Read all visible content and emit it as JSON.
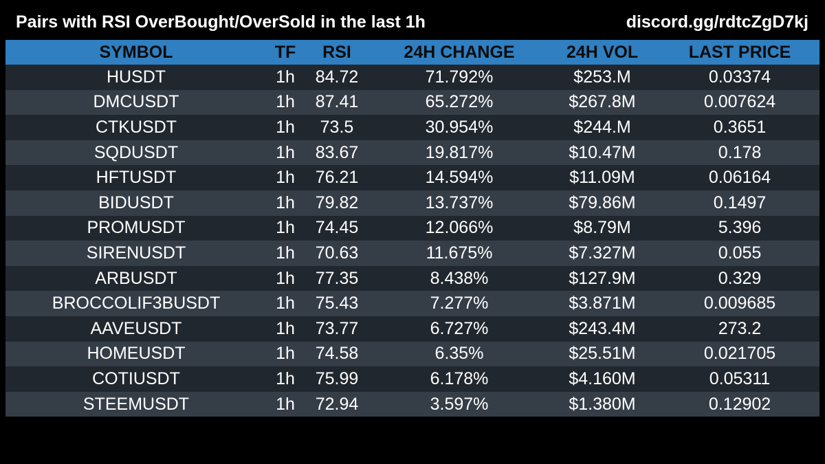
{
  "header": {
    "title": "Pairs with RSI OverBought/OverSold in the last 1h",
    "invite": "discord.gg/rdtcZgD7kj"
  },
  "columns": {
    "symbol": "SYMBOL",
    "tf": "TF",
    "rsi": "RSI",
    "change": "24H CHANGE",
    "vol": "24H VOL",
    "price": "LAST PRICE"
  },
  "rows": [
    {
      "symbol": "HUSDT",
      "tf": "1h",
      "rsi": "84.72",
      "change": "71.792%",
      "vol": "$253.M",
      "price": "0.03374"
    },
    {
      "symbol": "DMCUSDT",
      "tf": "1h",
      "rsi": "87.41",
      "change": "65.272%",
      "vol": "$267.8M",
      "price": "0.007624"
    },
    {
      "symbol": "CTKUSDT",
      "tf": "1h",
      "rsi": "73.5",
      "change": "30.954%",
      "vol": "$244.M",
      "price": "0.3651"
    },
    {
      "symbol": "SQDUSDT",
      "tf": "1h",
      "rsi": "83.67",
      "change": "19.817%",
      "vol": "$10.47M",
      "price": "0.178"
    },
    {
      "symbol": "HFTUSDT",
      "tf": "1h",
      "rsi": "76.21",
      "change": "14.594%",
      "vol": "$11.09M",
      "price": "0.06164"
    },
    {
      "symbol": "BIDUSDT",
      "tf": "1h",
      "rsi": "79.82",
      "change": "13.737%",
      "vol": "$79.86M",
      "price": "0.1497"
    },
    {
      "symbol": "PROMUSDT",
      "tf": "1h",
      "rsi": "74.45",
      "change": "12.066%",
      "vol": "$8.79M",
      "price": "5.396"
    },
    {
      "symbol": "SIRENUSDT",
      "tf": "1h",
      "rsi": "70.63",
      "change": "11.675%",
      "vol": "$7.327M",
      "price": "0.055"
    },
    {
      "symbol": "ARBUSDT",
      "tf": "1h",
      "rsi": "77.35",
      "change": "8.438%",
      "vol": "$127.9M",
      "price": "0.329"
    },
    {
      "symbol": "BROCCOLIF3BUSDT",
      "tf": "1h",
      "rsi": "75.43",
      "change": "7.277%",
      "vol": "$3.871M",
      "price": "0.009685"
    },
    {
      "symbol": "AAVEUSDT",
      "tf": "1h",
      "rsi": "73.77",
      "change": "6.727%",
      "vol": "$243.4M",
      "price": "273.2"
    },
    {
      "symbol": "HOMEUSDT",
      "tf": "1h",
      "rsi": "74.58",
      "change": "6.35%",
      "vol": "$25.51M",
      "price": "0.021705"
    },
    {
      "symbol": "COTIUSDT",
      "tf": "1h",
      "rsi": "75.99",
      "change": "6.178%",
      "vol": "$4.160M",
      "price": "0.05311"
    },
    {
      "symbol": "STEEMUSDT",
      "tf": "1h",
      "rsi": "72.94",
      "change": "3.597%",
      "vol": "$1.380M",
      "price": "0.12902"
    }
  ],
  "colors": {
    "background": "#000000",
    "header_row": "#2f7fc1",
    "row_dark": "#21272e",
    "row_light": "#353d47",
    "text": "#ffffff"
  }
}
